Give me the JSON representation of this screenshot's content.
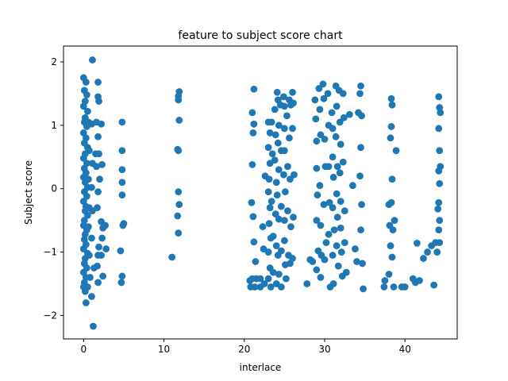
{
  "chart_data": {
    "type": "scatter",
    "title": "feature to subject score chart",
    "xlabel": "interlace",
    "ylabel": "Subject score",
    "xlim": [
      -2.5,
      46.5
    ],
    "ylim": [
      -2.37,
      2.25
    ],
    "xticks": [
      0,
      10,
      20,
      30,
      40
    ],
    "yticks": [
      -2,
      -1,
      0,
      1,
      2
    ],
    "grid": false,
    "marker_color": "#1f77b4",
    "series": [
      {
        "points": [
          [
            0.0,
            1.75
          ],
          [
            0.3,
            1.68
          ],
          [
            0.1,
            1.55
          ],
          [
            0.4,
            1.48
          ],
          [
            0.2,
            1.38
          ],
          [
            0.0,
            1.3
          ],
          [
            0.5,
            1.22
          ],
          [
            0.2,
            1.12
          ],
          [
            0.1,
            1.05
          ],
          [
            0.4,
            0.98
          ],
          [
            0.0,
            0.88
          ],
          [
            0.3,
            0.8
          ],
          [
            0.1,
            0.72
          ],
          [
            0.5,
            0.65
          ],
          [
            0.2,
            0.55
          ],
          [
            0.0,
            0.48
          ],
          [
            0.4,
            0.4
          ],
          [
            0.1,
            0.32
          ],
          [
            0.3,
            0.25
          ],
          [
            0.0,
            0.18
          ],
          [
            0.2,
            0.1
          ],
          [
            0.5,
            0.02
          ],
          [
            0.1,
            -0.05
          ],
          [
            0.4,
            -0.12
          ],
          [
            0.0,
            -0.2
          ],
          [
            0.3,
            -0.28
          ],
          [
            0.2,
            -0.35
          ],
          [
            0.5,
            -0.42
          ],
          [
            0.1,
            -0.5
          ],
          [
            0.0,
            -0.58
          ],
          [
            0.4,
            -0.65
          ],
          [
            0.2,
            -0.72
          ],
          [
            0.1,
            -0.8
          ],
          [
            0.3,
            -0.88
          ],
          [
            0.0,
            -0.95
          ],
          [
            0.5,
            -1.02
          ],
          [
            0.2,
            -1.1
          ],
          [
            0.1,
            -1.18
          ],
          [
            0.4,
            -1.25
          ],
          [
            0.0,
            -1.32
          ],
          [
            0.3,
            -1.4
          ],
          [
            0.1,
            -1.48
          ],
          [
            0.5,
            -1.55
          ],
          [
            0.2,
            -1.62
          ],
          [
            0.3,
            -1.8
          ],
          [
            0.0,
            -1.55
          ],
          [
            0.6,
            1.05
          ],
          [
            0.7,
            0.6
          ],
          [
            0.6,
            0.15
          ],
          [
            0.7,
            -0.3
          ],
          [
            0.6,
            -0.6
          ],
          [
            0.7,
            -1.05
          ],
          [
            0.8,
            -1.4
          ],
          [
            1.1,
            2.03
          ],
          [
            1.2,
            -2.17
          ],
          [
            1.0,
            -1.7
          ],
          [
            1.0,
            1.02
          ],
          [
            1.1,
            0.4
          ],
          [
            1.0,
            0.02
          ],
          [
            1.1,
            -0.35
          ],
          [
            1.0,
            -0.78
          ],
          [
            1.3,
            -1.25
          ],
          [
            1.5,
            0.55
          ],
          [
            1.8,
            1.68
          ],
          [
            1.8,
            1.45
          ],
          [
            1.9,
            1.38
          ],
          [
            1.6,
            1.05
          ],
          [
            1.8,
            0.82
          ],
          [
            1.9,
            0.55
          ],
          [
            1.6,
            0.35
          ],
          [
            2.0,
            0.15
          ],
          [
            1.8,
            -0.05
          ],
          [
            1.7,
            -0.3
          ],
          [
            1.9,
            -0.92
          ],
          [
            1.8,
            -1.05
          ],
          [
            1.7,
            -1.22
          ],
          [
            1.8,
            -1.48
          ],
          [
            2.2,
            1.02
          ],
          [
            2.3,
            0.38
          ],
          [
            2.2,
            -0.52
          ],
          [
            2.4,
            -0.62
          ],
          [
            2.3,
            -0.78
          ],
          [
            2.2,
            -1.05
          ],
          [
            2.4,
            -1.38
          ],
          [
            2.7,
            -0.58
          ],
          [
            2.8,
            -0.95
          ],
          [
            4.8,
            1.05
          ],
          [
            4.8,
            0.6
          ],
          [
            4.8,
            0.3
          ],
          [
            4.8,
            0.1
          ],
          [
            4.8,
            -0.1
          ],
          [
            5.0,
            -0.55
          ],
          [
            4.9,
            -0.58
          ],
          [
            4.6,
            -0.98
          ],
          [
            4.8,
            -1.38
          ],
          [
            4.7,
            -1.48
          ],
          [
            11.0,
            -1.08
          ],
          [
            11.9,
            1.53
          ],
          [
            11.8,
            1.46
          ],
          [
            11.8,
            1.4
          ],
          [
            11.9,
            1.08
          ],
          [
            11.7,
            0.62
          ],
          [
            11.8,
            0.6
          ],
          [
            11.8,
            -0.05
          ],
          [
            11.9,
            -0.25
          ],
          [
            11.7,
            -0.43
          ],
          [
            11.8,
            -0.7
          ],
          [
            20.7,
            -1.45
          ],
          [
            20.8,
            -1.55
          ],
          [
            21.0,
            -1.42
          ],
          [
            21.0,
            1.2
          ],
          [
            21.2,
            1.02
          ],
          [
            21.1,
            0.88
          ],
          [
            21.0,
            0.38
          ],
          [
            20.9,
            -0.22
          ],
          [
            21.1,
            -0.44
          ],
          [
            21.2,
            -0.84
          ],
          [
            21.4,
            -1.15
          ],
          [
            21.5,
            -1.42
          ],
          [
            21.3,
            -1.55
          ],
          [
            21.2,
            1.57
          ],
          [
            22.0,
            -1.55
          ],
          [
            22.0,
            -1.42
          ],
          [
            22.3,
            -0.6
          ],
          [
            22.4,
            -0.95
          ],
          [
            22.6,
            0.2
          ],
          [
            22.5,
            -1.5
          ],
          [
            23.0,
            1.05
          ],
          [
            23.2,
            0.88
          ],
          [
            23.0,
            0.65
          ],
          [
            23.2,
            0.4
          ],
          [
            23.1,
            0.15
          ],
          [
            23.0,
            -0.05
          ],
          [
            23.2,
            -0.3
          ],
          [
            23.1,
            -0.55
          ],
          [
            23.3,
            -0.78
          ],
          [
            23.0,
            -1.0
          ],
          [
            23.2,
            -1.25
          ],
          [
            23.0,
            -1.42
          ],
          [
            23.3,
            -1.55
          ],
          [
            23.4,
            1.05
          ],
          [
            23.5,
            0.55
          ],
          [
            23.4,
            -0.2
          ],
          [
            23.6,
            -0.75
          ],
          [
            23.6,
            -1.32
          ],
          [
            23.8,
            1.25
          ],
          [
            23.9,
            0.85
          ],
          [
            23.8,
            0.45
          ],
          [
            24.0,
            0.1
          ],
          [
            23.9,
            -0.4
          ],
          [
            24.0,
            -0.9
          ],
          [
            24.0,
            -1.5
          ],
          [
            24.1,
            1.52
          ],
          [
            24.2,
            1.4
          ],
          [
            24.3,
            1.0
          ],
          [
            24.2,
            0.72
          ],
          [
            24.3,
            0.3
          ],
          [
            24.1,
            -0.1
          ],
          [
            24.3,
            -0.48
          ],
          [
            24.2,
            -1.05
          ],
          [
            24.3,
            -1.35
          ],
          [
            24.5,
            1.32
          ],
          [
            24.6,
            0.6
          ],
          [
            24.6,
            -0.28
          ],
          [
            24.6,
            -0.98
          ],
          [
            24.6,
            -1.55
          ],
          [
            24.9,
            1.45
          ],
          [
            25.0,
            1.3
          ],
          [
            25.0,
            0.95
          ],
          [
            25.0,
            0.6
          ],
          [
            24.9,
            0.22
          ],
          [
            25.1,
            -0.05
          ],
          [
            25.0,
            -0.5
          ],
          [
            25.0,
            -0.82
          ],
          [
            25.1,
            -1.2
          ],
          [
            25.2,
            -1.42
          ],
          [
            25.3,
            1.15
          ],
          [
            25.4,
            0.35
          ],
          [
            25.4,
            -0.35
          ],
          [
            25.5,
            -1.05
          ],
          [
            25.6,
            1.4
          ],
          [
            25.8,
            1.32
          ],
          [
            25.6,
            0.8
          ],
          [
            25.7,
            0.15
          ],
          [
            25.8,
            -0.6
          ],
          [
            25.7,
            -1.18
          ],
          [
            26.0,
            1.52
          ],
          [
            26.1,
            1.35
          ],
          [
            26.0,
            0.95
          ],
          [
            26.2,
            0.22
          ],
          [
            26.1,
            -0.45
          ],
          [
            26.0,
            -1.1
          ],
          [
            27.8,
            -1.5
          ],
          [
            28.2,
            -1.12
          ],
          [
            28.5,
            -1.15
          ],
          [
            28.8,
            1.4
          ],
          [
            28.9,
            1.1
          ],
          [
            29.0,
            0.75
          ],
          [
            29.0,
            0.32
          ],
          [
            29.1,
            -0.1
          ],
          [
            29.0,
            -0.5
          ],
          [
            29.2,
            -0.98
          ],
          [
            29.0,
            -1.28
          ],
          [
            29.3,
            1.58
          ],
          [
            29.4,
            1.25
          ],
          [
            29.5,
            0.85
          ],
          [
            29.4,
            0.05
          ],
          [
            29.5,
            -0.58
          ],
          [
            29.6,
            -1.05
          ],
          [
            29.5,
            -1.4
          ],
          [
            29.8,
            1.65
          ],
          [
            29.9,
            1.42
          ],
          [
            30.0,
            0.78
          ],
          [
            30.1,
            0.35
          ],
          [
            29.9,
            -0.25
          ],
          [
            30.2,
            -0.85
          ],
          [
            30.0,
            -1.12
          ],
          [
            30.4,
            1.5
          ],
          [
            30.5,
            1.0
          ],
          [
            30.5,
            0.35
          ],
          [
            30.6,
            -0.22
          ],
          [
            30.5,
            -0.72
          ],
          [
            30.7,
            -1.55
          ],
          [
            30.9,
            1.2
          ],
          [
            31.0,
            0.95
          ],
          [
            31.0,
            0.5
          ],
          [
            31.1,
            0.18
          ],
          [
            31.0,
            -0.3
          ],
          [
            31.2,
            -0.65
          ],
          [
            31.0,
            -1.05
          ],
          [
            31.1,
            -1.5
          ],
          [
            31.4,
            1.62
          ],
          [
            31.5,
            1.3
          ],
          [
            31.4,
            0.82
          ],
          [
            31.6,
            0.35
          ],
          [
            31.5,
            -0.08
          ],
          [
            31.6,
            -0.45
          ],
          [
            31.5,
            -0.9
          ],
          [
            31.7,
            -1.22
          ],
          [
            31.8,
            1.55
          ],
          [
            31.9,
            1.05
          ],
          [
            32.0,
            0.7
          ],
          [
            31.9,
            0.25
          ],
          [
            32.0,
            -0.2
          ],
          [
            32.0,
            -0.62
          ],
          [
            32.1,
            -1.0
          ],
          [
            32.2,
            -1.38
          ],
          [
            32.3,
            1.5
          ],
          [
            32.4,
            1.12
          ],
          [
            32.3,
            0.42
          ],
          [
            32.5,
            -0.35
          ],
          [
            32.5,
            -0.85
          ],
          [
            32.7,
            -1.32
          ],
          [
            33.1,
            1.17
          ],
          [
            33.5,
            0.05
          ],
          [
            33.8,
            -0.95
          ],
          [
            34.0,
            -1.15
          ],
          [
            34.2,
            1.2
          ],
          [
            34.5,
            1.62
          ],
          [
            34.4,
            1.5
          ],
          [
            34.6,
            1.15
          ],
          [
            34.5,
            0.65
          ],
          [
            34.4,
            0.2
          ],
          [
            34.6,
            -0.25
          ],
          [
            34.5,
            -0.65
          ],
          [
            34.7,
            -1.18
          ],
          [
            34.8,
            -1.58
          ],
          [
            37.4,
            -1.55
          ],
          [
            37.5,
            -1.45
          ],
          [
            38.0,
            -0.25
          ],
          [
            38.1,
            -0.58
          ],
          [
            38.2,
            -0.9
          ],
          [
            38.0,
            -1.35
          ],
          [
            38.3,
            1.42
          ],
          [
            38.4,
            1.32
          ],
          [
            38.3,
            0.98
          ],
          [
            38.2,
            0.8
          ],
          [
            38.4,
            0.15
          ],
          [
            38.3,
            -0.22
          ],
          [
            38.5,
            -0.65
          ],
          [
            38.4,
            -1.08
          ],
          [
            38.6,
            -1.55
          ],
          [
            38.7,
            -0.5
          ],
          [
            38.9,
            0.6
          ],
          [
            39.6,
            -1.55
          ],
          [
            40.0,
            -1.55
          ],
          [
            41.0,
            -1.42
          ],
          [
            41.3,
            -1.48
          ],
          [
            41.5,
            -0.86
          ],
          [
            41.8,
            -1.45
          ],
          [
            42.3,
            -1.1
          ],
          [
            42.8,
            -1.0
          ],
          [
            43.3,
            -0.9
          ],
          [
            43.6,
            -1.52
          ],
          [
            43.8,
            -0.85
          ],
          [
            44.0,
            -1.0
          ],
          [
            44.2,
            1.45
          ],
          [
            44.3,
            1.28
          ],
          [
            44.4,
            1.2
          ],
          [
            44.2,
            0.95
          ],
          [
            44.3,
            0.6
          ],
          [
            44.4,
            0.35
          ],
          [
            44.2,
            0.28
          ],
          [
            44.3,
            0.08
          ],
          [
            44.2,
            -0.22
          ],
          [
            44.3,
            -0.5
          ],
          [
            44.2,
            -0.65
          ],
          [
            44.3,
            -0.85
          ],
          [
            44.1,
            -0.32
          ]
        ]
      }
    ]
  }
}
